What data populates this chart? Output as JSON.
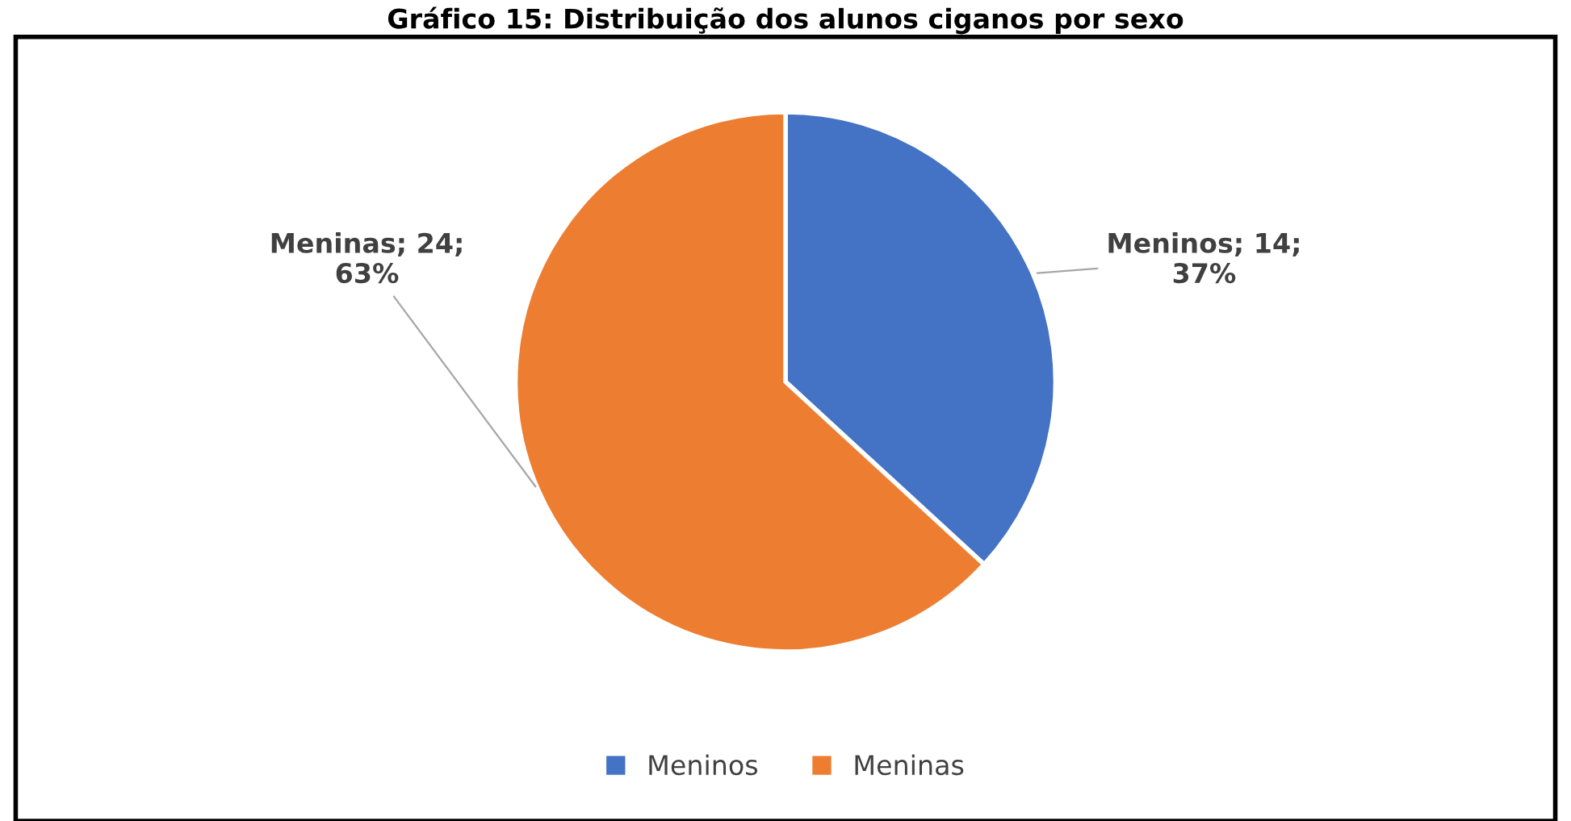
{
  "chart_data": {
    "type": "pie",
    "title": "Gráfico 15: Distribuição dos alunos ciganos por sexo",
    "categories": [
      "Meninos",
      "Meninas"
    ],
    "values": [
      14,
      24
    ],
    "colors": [
      "#4472c4",
      "#ed7d31"
    ],
    "value_labels": [
      "Meninos; 14;\n37%",
      "Meninas; 24;\n63%"
    ],
    "legend": "bottom"
  }
}
